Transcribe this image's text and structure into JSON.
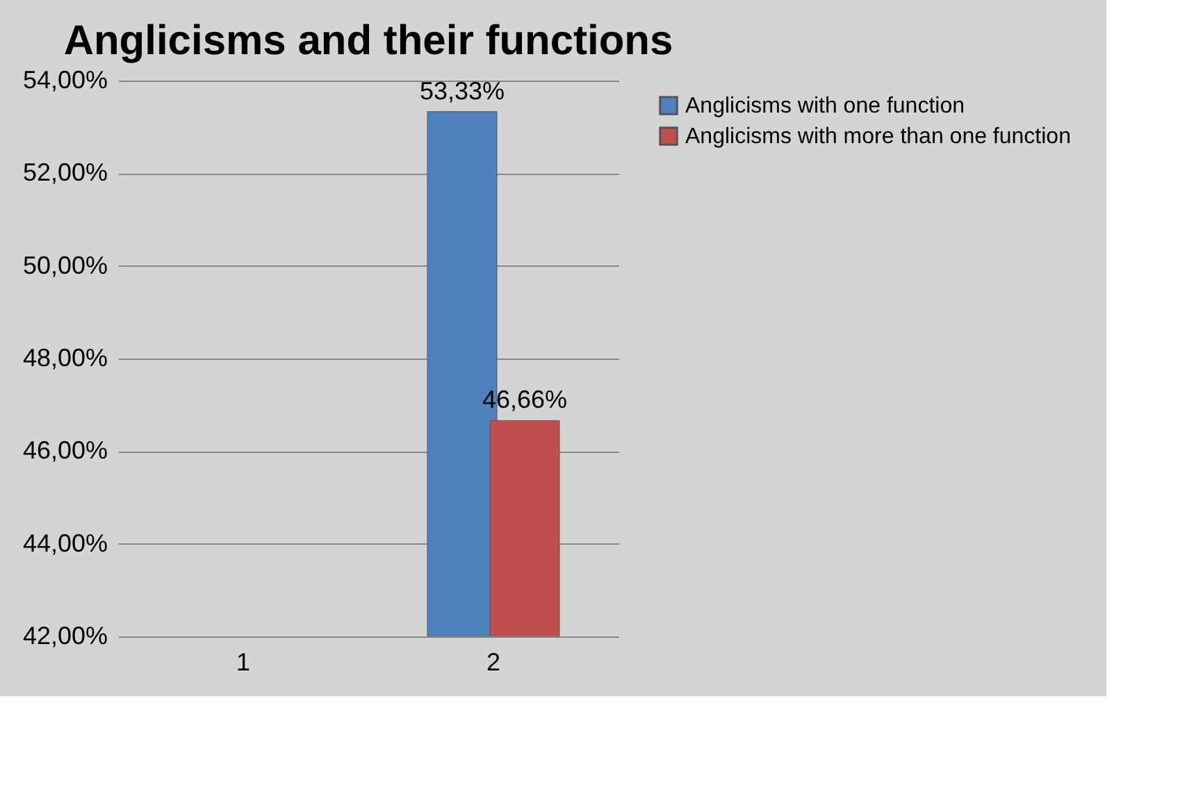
{
  "chart_data": {
    "type": "bar",
    "title": "Anglicisms and their functions",
    "categories": [
      "1",
      "2"
    ],
    "series": [
      {
        "name": "Anglicisms with one function",
        "color": "#4f81bd",
        "values": [
          null,
          53.33
        ],
        "value_labels": [
          null,
          "53,33%"
        ]
      },
      {
        "name": "Anglicisms with more than one function",
        "color": "#c0504d",
        "values": [
          null,
          46.66
        ],
        "value_labels": [
          null,
          "46,66%"
        ]
      }
    ],
    "ylim": [
      42,
      54
    ],
    "yticks": [
      {
        "value": 42,
        "label": "42,00%"
      },
      {
        "value": 44,
        "label": "44,00%"
      },
      {
        "value": 46,
        "label": "46,00%"
      },
      {
        "value": 48,
        "label": "48,00%"
      },
      {
        "value": 50,
        "label": "50,00%"
      },
      {
        "value": 52,
        "label": "52,00%"
      },
      {
        "value": 54,
        "label": "54,00%"
      }
    ],
    "grid": "y",
    "legend": "right"
  }
}
